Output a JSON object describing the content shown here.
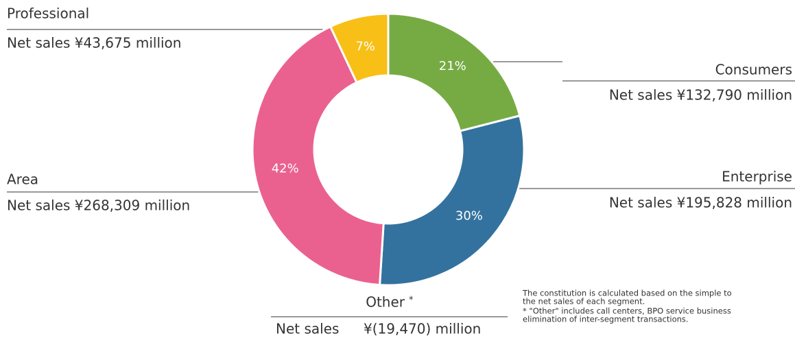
{
  "chart_data": {
    "type": "pie",
    "donut": true,
    "categories": [
      "Consumers",
      "Enterprise",
      "Area",
      "Professional"
    ],
    "values": [
      21,
      30,
      42,
      7
    ],
    "value_labels": [
      "21%",
      "30%",
      "42%",
      "7%"
    ],
    "colors": [
      "#76ab43",
      "#33729e",
      "#ea6190",
      "#f8bf17"
    ],
    "sales": [
      "Net sales ¥132,790 million",
      "Net sales ¥195,828 million",
      "Net sales ¥268,309 million",
      "Net sales ¥43,675 million"
    ],
    "other": {
      "name": "Other",
      "marker": "*",
      "label": "Net sales",
      "amount": "¥(19,470) million"
    },
    "footnotes": [
      "The constitution is calculated based on the simple to",
      "the net sales of each segment.",
      "* \"Other\" includes call centers, BPO service business",
      "elimination of inter-segment transactions."
    ]
  }
}
